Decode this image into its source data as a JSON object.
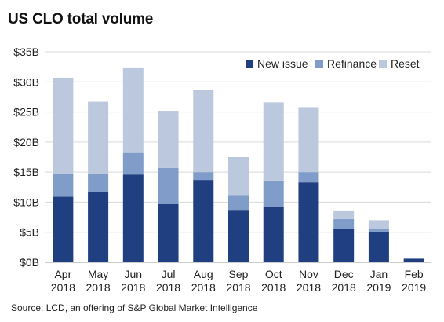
{
  "chart_data": {
    "type": "bar",
    "stacked": true,
    "title": "US CLO total volume",
    "xlabel": "",
    "ylabel": "",
    "categories": [
      "Apr 2018",
      "May 2018",
      "Jun 2018",
      "Jul 2018",
      "Aug 2018",
      "Sep 2018",
      "Oct 2018",
      "Nov 2018",
      "Dec 2018",
      "Jan 2019",
      "Feb 2019"
    ],
    "category_lines": [
      [
        "Apr",
        "2018"
      ],
      [
        "May",
        "2018"
      ],
      [
        "Jun",
        "2018"
      ],
      [
        "Jul",
        "2018"
      ],
      [
        "Aug",
        "2018"
      ],
      [
        "Sep",
        "2018"
      ],
      [
        "Oct",
        "2018"
      ],
      [
        "Nov",
        "2018"
      ],
      [
        "Dec",
        "2018"
      ],
      [
        "Jan",
        "2019"
      ],
      [
        "Feb",
        "2019"
      ]
    ],
    "series": [
      {
        "name": "New issue",
        "color": "#1f3f80",
        "values": [
          10.9,
          11.7,
          14.6,
          9.7,
          13.7,
          8.6,
          9.2,
          13.3,
          5.6,
          5.1,
          0.6
        ]
      },
      {
        "name": "Refinance",
        "color": "#7f9dc8",
        "values": [
          3.8,
          3.0,
          3.6,
          6.0,
          1.3,
          2.6,
          4.4,
          1.7,
          1.6,
          0.4,
          0
        ]
      },
      {
        "name": "Reset",
        "color": "#bcc8dd",
        "values": [
          16.0,
          12.0,
          14.2,
          9.5,
          13.6,
          6.3,
          13.0,
          10.8,
          1.3,
          1.5,
          0
        ]
      }
    ],
    "ylim": [
      0,
      35
    ],
    "yticks": [
      0,
      5,
      10,
      15,
      20,
      25,
      30,
      35
    ],
    "ytick_labels": [
      "$0B",
      "$5B",
      "$10B",
      "$15B",
      "$20B",
      "$25B",
      "$30B",
      "$35B"
    ],
    "grid": true,
    "legend_position": "top-right",
    "source": "Source: LCD, an offering of S&P Global Market Intelligence"
  }
}
